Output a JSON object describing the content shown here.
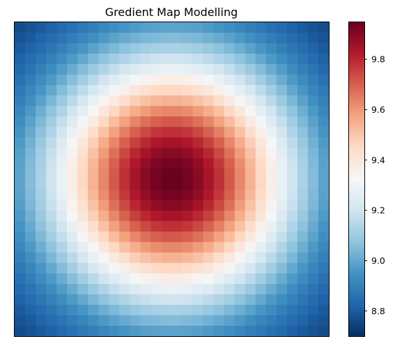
{
  "chart_data": {
    "type": "heatmap",
    "title": "Gredient Map Modelling",
    "xlabel": "",
    "ylabel": "",
    "rows": 30,
    "cols": 30,
    "colormap": "RdBu_r",
    "surface": {
      "form": "exp(-(dx^2)/(2*sx^2) - (dy^2)/(2*sy^2))",
      "min": 8.7,
      "max": 9.95,
      "peak_cell": {
        "row": 14.5,
        "col": 14.5
      },
      "sigma_col": 8.5,
      "sigma_row": 8.5
    },
    "colorbar": {
      "vmin": 8.7,
      "vmax": 9.95,
      "ticks": [
        8.8,
        9.0,
        9.2,
        9.4,
        9.6,
        9.8
      ],
      "tick_labels": [
        "8.8",
        "9.0",
        "9.2",
        "9.4",
        "9.6",
        "9.8"
      ],
      "colors": [
        "#053061",
        "#2166ac",
        "#4393c3",
        "#92c5de",
        "#d1e5f0",
        "#f7f7f7",
        "#fddbc7",
        "#f4a582",
        "#d6604d",
        "#b2182b",
        "#67001f"
      ]
    },
    "axes": {
      "show_ticks": false,
      "grid": false
    }
  }
}
